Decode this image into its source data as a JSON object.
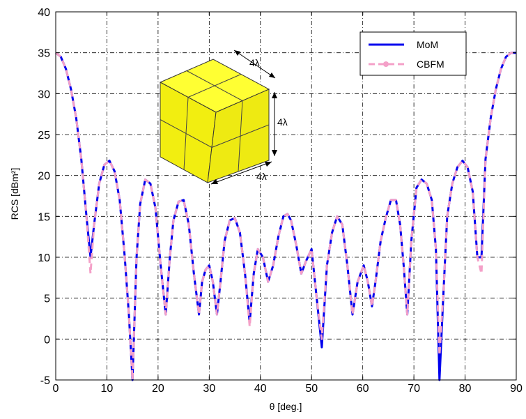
{
  "chart_data": {
    "type": "line",
    "xlabel": "θ [deg.]",
    "ylabel": "RCS [dBm²]",
    "xlim": [
      0,
      90
    ],
    "ylim": [
      -5,
      40
    ],
    "xticks": [
      0,
      10,
      20,
      30,
      40,
      50,
      60,
      70,
      80,
      90
    ],
    "yticks": [
      -5,
      0,
      5,
      10,
      15,
      20,
      25,
      30,
      35,
      40
    ],
    "grid": true,
    "legend_position": "top-right",
    "series": [
      {
        "name": "MoM",
        "color": "#0000ee",
        "style": "solid",
        "x": [
          0,
          1,
          2,
          3,
          4,
          5,
          6,
          6.8,
          7.5,
          8.5,
          9.5,
          10.5,
          11.5,
          12.5,
          13.5,
          14.3,
          15,
          15.8,
          16.5,
          17.5,
          18.5,
          19.5,
          20.5,
          21.5,
          22.3,
          23,
          24,
          25,
          26,
          27,
          28,
          28.6,
          29.3,
          30,
          30.7,
          31.5,
          32.2,
          33,
          34,
          35,
          36,
          37,
          37.9,
          38.7,
          39.5,
          40.5,
          41.5,
          42.5,
          43.5,
          44.5,
          45.3,
          46,
          47,
          48,
          48.9,
          50,
          51,
          52,
          53,
          54,
          55,
          56,
          57,
          58,
          59,
          60.2,
          61,
          61.8,
          62.5,
          63.5,
          64.5,
          65.5,
          66.5,
          67.3,
          68,
          68.7,
          69.5,
          70.5,
          71.5,
          72.5,
          73.5,
          74.3,
          75,
          75.8,
          76.5,
          77.5,
          78.5,
          79.5,
          80.5,
          81.5,
          82.4,
          83.2,
          84,
          85,
          86,
          87,
          88,
          89,
          90
        ],
        "y": [
          35,
          34.5,
          33,
          30.5,
          27,
          22,
          15,
          10,
          14,
          19,
          21.3,
          21.8,
          20.5,
          17,
          10,
          3,
          -5,
          10,
          16.5,
          19.5,
          19,
          16,
          9,
          3,
          10,
          14.5,
          16.8,
          17,
          14,
          8,
          3,
          7,
          8.5,
          9,
          7,
          3,
          7,
          12,
          14.5,
          14.8,
          13,
          8,
          2,
          8,
          11,
          10,
          7,
          9,
          12.5,
          15,
          15.3,
          14.5,
          11.5,
          8,
          9.5,
          11,
          5,
          -1,
          9,
          13,
          15,
          14,
          9,
          3,
          7,
          9,
          7,
          4,
          7,
          12,
          14.8,
          17,
          17,
          14,
          9,
          3,
          12,
          18.5,
          19.5,
          19,
          17,
          11,
          -5,
          6,
          15,
          19,
          21,
          21.8,
          21,
          18,
          10,
          10,
          22,
          27,
          30.5,
          33,
          34.5,
          35,
          35
        ]
      },
      {
        "name": "CBFM",
        "color": "#f4a0c8",
        "style": "dashed",
        "x": [
          0,
          1,
          2,
          3,
          4,
          5,
          6,
          6.8,
          7.5,
          8.5,
          9.5,
          10.5,
          11.5,
          12.5,
          13.5,
          14.3,
          15,
          15.8,
          16.5,
          17.5,
          18.5,
          19.5,
          20.5,
          21.5,
          22.3,
          23,
          24,
          25,
          26,
          27,
          28,
          28.6,
          29.3,
          30,
          30.7,
          31.5,
          32.2,
          33,
          34,
          35,
          36,
          37,
          37.9,
          38.7,
          39.5,
          40.5,
          41.5,
          42.5,
          43.5,
          44.5,
          45.3,
          46,
          47,
          48,
          48.9,
          50,
          51,
          52,
          53,
          54,
          55,
          56,
          57,
          58,
          59,
          60.2,
          61,
          61.8,
          62.5,
          63.5,
          64.5,
          65.5,
          66.5,
          67.3,
          68,
          68.7,
          69.5,
          70.5,
          71.5,
          72.5,
          73.5,
          74.3,
          75,
          75.8,
          76.5,
          77.5,
          78.5,
          79.5,
          80.5,
          81.5,
          82.4,
          83.2,
          84,
          85,
          86,
          87,
          88,
          89,
          90
        ],
        "y": [
          35,
          34.5,
          33,
          30.5,
          27,
          22,
          15,
          8,
          14,
          19,
          21.3,
          21.8,
          20.5,
          17,
          10,
          3,
          -5,
          10,
          16.5,
          19.5,
          19,
          16,
          9,
          3,
          10,
          14.5,
          16.8,
          17,
          14,
          8,
          3,
          7,
          8.5,
          9,
          7,
          3,
          7,
          12,
          14.5,
          14.8,
          13,
          8,
          1.5,
          8,
          11,
          10,
          7,
          9,
          12.5,
          15,
          15.3,
          14.5,
          11.5,
          8,
          9.5,
          11,
          5,
          0,
          9,
          13,
          15,
          14,
          9,
          3,
          7,
          9,
          7,
          4,
          7,
          12,
          14.8,
          17,
          17,
          14,
          9,
          3,
          12,
          18.5,
          19.5,
          19,
          17,
          11,
          -2,
          6,
          15,
          19,
          21,
          21.8,
          21,
          18,
          10,
          8,
          22,
          27,
          30.5,
          33,
          34.5,
          35,
          35
        ]
      }
    ],
    "annotations": [
      "4λ",
      "4λ",
      "4λ"
    ],
    "inset": "cube"
  }
}
